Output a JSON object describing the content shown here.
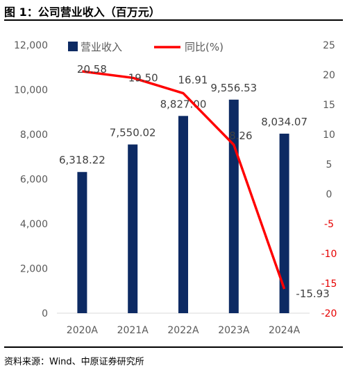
{
  "page": {
    "title": "图 1：公司营业收入（百万元）",
    "source": "资料来源：Wind、中原证券研究所"
  },
  "chart_data": {
    "type": "bar",
    "categories": [
      "2020A",
      "2021A",
      "2022A",
      "2023A",
      "2024A"
    ],
    "series": [
      {
        "name": "营业收入",
        "type": "bar",
        "axis": "left",
        "values": [
          6318.22,
          7550.02,
          8827.0,
          9556.53,
          8034.07
        ],
        "labels": [
          "6,318.22",
          "7,550.02",
          "8,827.00",
          "9,556.53",
          "8,034.07"
        ],
        "color": "#0d2a63"
      },
      {
        "name": "同比(%)",
        "type": "line",
        "axis": "right",
        "values": [
          20.58,
          19.5,
          16.91,
          8.26,
          -15.93
        ],
        "labels": [
          "20.58",
          "19.50",
          "16.91",
          "8.26",
          "-15.93"
        ],
        "color": "#ff0000"
      }
    ],
    "y_left": {
      "range": [
        0,
        12000
      ],
      "ticks": [
        0,
        2000,
        4000,
        6000,
        8000,
        10000,
        12000
      ],
      "tick_labels": [
        "0",
        "2,000",
        "4,000",
        "6,000",
        "8,000",
        "10,000",
        "12,000"
      ]
    },
    "y_right": {
      "range": [
        -20,
        25
      ],
      "ticks": [
        -20,
        -15,
        -10,
        -5,
        0,
        5,
        10,
        15,
        20,
        25
      ],
      "tick_labels": [
        "-20",
        "-15",
        "-10",
        "-5",
        "0",
        "5",
        "10",
        "15",
        "20",
        "25"
      ],
      "negative_color": "#e60000"
    },
    "grid": false,
    "legend": "top"
  }
}
